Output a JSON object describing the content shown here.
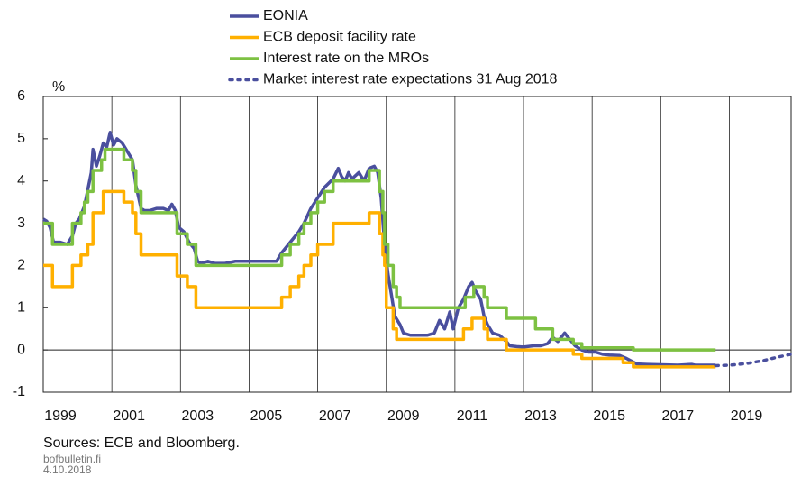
{
  "chart_data": {
    "type": "line",
    "y_label": "%",
    "sources": "Sources: ECB and Bloomberg.",
    "site": "bofbulletin.fi",
    "date": "4.10.2018",
    "xlim": [
      1999,
      2020.8
    ],
    "xticks": [
      1999,
      2001,
      2003,
      2005,
      2007,
      2009,
      2011,
      2013,
      2015,
      2017,
      2019
    ],
    "ylim": [
      -1,
      6
    ],
    "yticks": [
      -1,
      0,
      1,
      2,
      3,
      4,
      5,
      6
    ],
    "grid": true,
    "series": [
      {
        "name": "EONIA",
        "color": "#4a4f9e",
        "style": "solid",
        "x": [
          1999.0,
          1999.1,
          1999.2,
          1999.3,
          1999.5,
          1999.7,
          1999.85,
          1999.95,
          2000.05,
          2000.2,
          2000.3,
          2000.4,
          2000.45,
          2000.55,
          2000.65,
          2000.75,
          2000.85,
          2000.95,
          2001.05,
          2001.15,
          2001.3,
          2001.45,
          2001.6,
          2001.7,
          2001.85,
          2001.95,
          2002.1,
          2002.3,
          2002.5,
          2002.65,
          2002.75,
          2002.85,
          2002.95,
          2003.1,
          2003.25,
          2003.4,
          2003.5,
          2003.6,
          2003.8,
          2004.0,
          2004.3,
          2004.6,
          2004.9,
          2005.2,
          2005.5,
          2005.8,
          2005.95,
          2006.2,
          2006.45,
          2006.6,
          2006.8,
          2007.0,
          2007.2,
          2007.45,
          2007.6,
          2007.7,
          2007.8,
          2007.9,
          2008.0,
          2008.2,
          2008.35,
          2008.5,
          2008.65,
          2008.75,
          2008.85,
          2008.95,
          2009.05,
          2009.15,
          2009.25,
          2009.4,
          2009.5,
          2009.7,
          2010.0,
          2010.2,
          2010.4,
          2010.55,
          2010.7,
          2010.85,
          2010.95,
          2011.1,
          2011.25,
          2011.4,
          2011.5,
          2011.6,
          2011.75,
          2011.85,
          2011.95,
          2012.1,
          2012.3,
          2012.5,
          2012.6,
          2012.8,
          2013.0,
          2013.3,
          2013.5,
          2013.7,
          2013.85,
          2014.0,
          2014.2,
          2014.3,
          2014.5,
          2014.7,
          2014.9,
          2015.1,
          2015.3,
          2015.5,
          2015.8,
          2016.0,
          2016.3,
          2016.6,
          2017.0,
          2017.5,
          2017.9,
          2018.0,
          2018.6
        ],
        "values": [
          3.1,
          3.05,
          2.9,
          2.55,
          2.55,
          2.5,
          2.7,
          3.0,
          3.1,
          3.4,
          3.8,
          4.2,
          4.75,
          4.35,
          4.6,
          4.9,
          4.8,
          5.15,
          4.85,
          5.0,
          4.9,
          4.7,
          4.5,
          3.9,
          3.35,
          3.3,
          3.3,
          3.35,
          3.35,
          3.3,
          3.45,
          3.3,
          2.9,
          2.8,
          2.55,
          2.4,
          2.1,
          2.05,
          2.1,
          2.05,
          2.05,
          2.1,
          2.1,
          2.1,
          2.1,
          2.1,
          2.3,
          2.55,
          2.8,
          3.0,
          3.35,
          3.6,
          3.85,
          4.05,
          4.3,
          4.1,
          4.0,
          4.2,
          4.05,
          4.2,
          4.0,
          4.3,
          4.35,
          4.2,
          3.6,
          2.5,
          1.8,
          1.3,
          0.8,
          0.6,
          0.4,
          0.35,
          0.35,
          0.35,
          0.4,
          0.7,
          0.5,
          0.9,
          0.5,
          1.0,
          1.2,
          1.5,
          1.6,
          1.4,
          1.2,
          0.8,
          0.6,
          0.4,
          0.35,
          0.2,
          0.1,
          0.08,
          0.07,
          0.1,
          0.1,
          0.15,
          0.3,
          0.2,
          0.4,
          0.3,
          0.1,
          0.0,
          -0.05,
          -0.05,
          -0.1,
          -0.12,
          -0.13,
          -0.2,
          -0.33,
          -0.34,
          -0.35,
          -0.36,
          -0.34,
          -0.36,
          -0.36
        ]
      },
      {
        "name": "ECB deposit facility rate",
        "color": "#ffb000",
        "style": "step",
        "x": [
          1999.0,
          1999.27,
          1999.85,
          2000.1,
          2000.3,
          2000.45,
          2000.75,
          2001.35,
          2001.6,
          2001.7,
          2001.85,
          2002.9,
          2003.2,
          2003.45,
          2005.95,
          2006.2,
          2006.45,
          2006.6,
          2006.8,
          2007.0,
          2007.45,
          2008.5,
          2008.8,
          2008.9,
          2008.95,
          2009.0,
          2009.2,
          2009.3,
          2011.25,
          2011.5,
          2011.85,
          2011.95,
          2012.5,
          2014.45,
          2014.7,
          2015.9,
          2016.2,
          2018.6
        ],
        "values": [
          2,
          1.5,
          2,
          2.25,
          2.5,
          3.25,
          3.75,
          3.5,
          3.25,
          2.75,
          2.25,
          1.75,
          1.5,
          1.0,
          1.25,
          1.5,
          1.75,
          2.0,
          2.25,
          2.5,
          3.0,
          3.25,
          2.75,
          2.25,
          2.0,
          1.0,
          0.5,
          0.25,
          0.5,
          0.75,
          0.5,
          0.25,
          0,
          -0.1,
          -0.2,
          -0.3,
          -0.4,
          -0.4
        ]
      },
      {
        "name": "Interest rate on the MROs",
        "color": "#7dc142",
        "style": "step",
        "x": [
          1999.0,
          1999.27,
          1999.85,
          2000.1,
          2000.2,
          2000.3,
          2000.45,
          2000.7,
          2000.8,
          2001.35,
          2001.6,
          2001.7,
          2001.85,
          2002.9,
          2003.2,
          2003.45,
          2005.95,
          2006.2,
          2006.45,
          2006.6,
          2006.8,
          2007.0,
          2007.2,
          2007.45,
          2008.5,
          2008.8,
          2008.9,
          2008.95,
          2009.05,
          2009.2,
          2009.3,
          2009.4,
          2011.3,
          2011.55,
          2011.85,
          2011.95,
          2012.5,
          2013.35,
          2013.85,
          2014.45,
          2014.7,
          2016.2,
          2018.6
        ],
        "values": [
          3,
          2.5,
          3,
          3.25,
          3.5,
          3.75,
          4.25,
          4.5,
          4.75,
          4.5,
          4.25,
          3.75,
          3.25,
          2.75,
          2.5,
          2.0,
          2.25,
          2.5,
          2.75,
          3.0,
          3.25,
          3.5,
          3.75,
          4.0,
          4.25,
          3.75,
          3.25,
          2.5,
          2.0,
          1.5,
          1.25,
          1.0,
          1.25,
          1.5,
          1.25,
          1.0,
          0.75,
          0.5,
          0.25,
          0.15,
          0.05,
          0,
          0
        ]
      },
      {
        "name": "Market interest rate expectations 31 Aug 2018",
        "color": "#4a4f9e",
        "style": "dotted",
        "x": [
          2018.6,
          2019.0,
          2019.5,
          2020.0,
          2020.4,
          2020.8
        ],
        "values": [
          -0.37,
          -0.36,
          -0.32,
          -0.25,
          -0.17,
          -0.1
        ]
      }
    ]
  }
}
